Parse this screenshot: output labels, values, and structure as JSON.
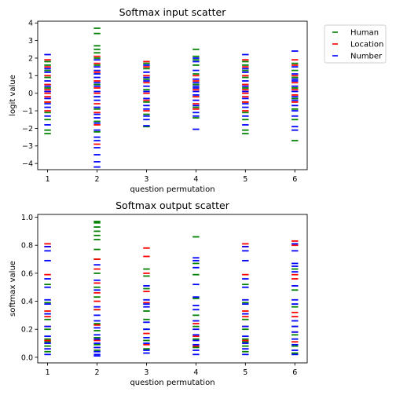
{
  "chart_data": [
    {
      "type": "scatter",
      "title": "Softmax input scatter",
      "xlabel": "question permutation",
      "ylabel": "logit value",
      "xlim": [
        0.8,
        6.25
      ],
      "ylim": [
        -4.35,
        4.1
      ],
      "xticks": [
        1,
        2,
        3,
        4,
        5,
        6
      ],
      "yticks": [
        -4,
        -3,
        -2,
        -1,
        0,
        1,
        2,
        3,
        4
      ],
      "marker": "horizontal-dash",
      "legend": "outside-right",
      "series": [
        {
          "name": "Human",
          "color": "#008000",
          "points": [
            {
              "x": 1,
              "y": [
                -2.3,
                -2.1,
                -1.5,
                -1.1,
                -0.5,
                0.3,
                0.9,
                1.3,
                1.6,
                1.8
              ]
            },
            {
              "x": 2,
              "y": [
                -2.2,
                -1.6,
                -0.9,
                -0.2,
                0.5,
                1.1,
                1.6,
                2.0,
                2.3,
                2.5,
                2.7,
                3.4,
                3.7
              ]
            },
            {
              "x": 3,
              "y": [
                -1.9,
                -1.2,
                -0.5,
                0.2,
                0.8,
                1.4,
                1.7
              ]
            },
            {
              "x": 4,
              "y": [
                -1.4,
                -0.8,
                -0.2,
                0.5,
                1.1,
                1.6,
                1.9,
                2.1,
                2.5
              ]
            },
            {
              "x": 5,
              "y": [
                -2.3,
                -2.1,
                -1.5,
                -1.1,
                -0.5,
                0.3,
                0.9,
                1.3,
                1.6,
                1.8
              ]
            },
            {
              "x": 6,
              "y": [
                -2.7,
                -1.5,
                -0.9,
                -0.3,
                0.3,
                0.9,
                1.3,
                1.7
              ]
            }
          ]
        },
        {
          "name": "Location",
          "color": "#ff0000",
          "points": [
            {
              "x": 1,
              "y": [
                -1.0,
                -0.5,
                -0.2,
                0.0,
                0.2,
                0.5,
                1.0,
                1.5,
                1.9
              ]
            },
            {
              "x": 2,
              "y": [
                -2.9,
                -1.8,
                -1.1,
                -0.6,
                0.0,
                0.3,
                0.7,
                1.2,
                1.7,
                2.1
              ]
            },
            {
              "x": 3,
              "y": [
                -1.0,
                -0.4,
                0.0,
                0.6,
                1.0,
                1.5,
                1.8
              ]
            },
            {
              "x": 4,
              "y": [
                -0.9,
                -0.6,
                -0.2,
                0.2,
                0.7,
                1.0
              ]
            },
            {
              "x": 5,
              "y": [
                -1.0,
                -0.5,
                -0.2,
                0.0,
                0.2,
                0.5,
                1.0,
                1.5,
                1.9
              ]
            },
            {
              "x": 6,
              "y": [
                -0.5,
                -0.1,
                0.2,
                0.6,
                1.0,
                1.6,
                1.9
              ]
            }
          ]
        },
        {
          "name": "Number",
          "color": "#0000ff",
          "points": [
            {
              "x": 1,
              "y": [
                -1.8,
                -1.3,
                -0.8,
                -0.6,
                -0.3,
                0.1,
                0.4,
                0.7,
                1.2,
                1.4,
                2.2
              ]
            },
            {
              "x": 2,
              "y": [
                -4.2,
                -3.9,
                -3.5,
                -3.1,
                -2.7,
                -2.5,
                -2.1,
                -1.7,
                -1.4,
                -1.2,
                -0.8,
                -0.4,
                -0.2,
                0.1,
                0.4,
                0.6,
                0.9,
                1.1,
                1.3,
                1.5,
                1.9
              ]
            },
            {
              "x": 3,
              "y": [
                -1.85,
                -1.5,
                -1.3,
                -0.9,
                -0.7,
                -0.3,
                0.1,
                0.4,
                0.7,
                0.9,
                1.2,
                1.6
              ]
            },
            {
              "x": 4,
              "y": [
                -2.05,
                -1.3,
                -1.1,
                -0.7,
                -0.4,
                -0.1,
                0.1,
                0.3,
                0.4,
                0.6,
                0.8,
                1.3,
                1.8,
                2.0
              ]
            },
            {
              "x": 5,
              "y": [
                -1.8,
                -1.3,
                -0.8,
                -0.6,
                -0.3,
                0.1,
                0.4,
                0.7,
                1.2,
                1.4,
                2.2
              ]
            },
            {
              "x": 6,
              "y": [
                -2.1,
                -1.9,
                -1.3,
                -1.0,
                -0.7,
                -0.4,
                -0.2,
                0.1,
                0.4,
                0.7,
                0.8,
                1.1,
                1.5,
                2.4
              ]
            }
          ]
        }
      ]
    },
    {
      "type": "scatter",
      "title": "Softmax output scatter",
      "xlabel": "question permutation",
      "ylabel": "softmax value",
      "xlim": [
        0.8,
        6.25
      ],
      "ylim": [
        -0.04,
        1.02
      ],
      "xticks": [
        1,
        2,
        3,
        4,
        5,
        6
      ],
      "yticks": [
        0.0,
        0.2,
        0.4,
        0.6,
        0.8,
        1.0
      ],
      "marker": "horizontal-dash",
      "series": [
        {
          "name": "Human",
          "color": "#008000",
          "points": [
            {
              "x": 1,
              "y": [
                0.04,
                0.08,
                0.11,
                0.13,
                0.2,
                0.27,
                0.39,
                0.52
              ]
            },
            {
              "x": 2,
              "y": [
                0.05,
                0.09,
                0.14,
                0.19,
                0.24,
                0.34,
                0.43,
                0.5,
                0.6,
                0.7,
                0.77,
                0.84,
                0.87,
                0.9,
                0.93,
                0.96,
                0.97
              ]
            },
            {
              "x": 3,
              "y": [
                0.06,
                0.12,
                0.2,
                0.27,
                0.33,
                0.49,
                0.58,
                0.63
              ]
            },
            {
              "x": 4,
              "y": [
                0.07,
                0.13,
                0.22,
                0.3,
                0.42,
                0.59,
                0.67,
                0.86
              ]
            },
            {
              "x": 5,
              "y": [
                0.04,
                0.08,
                0.11,
                0.13,
                0.2,
                0.27,
                0.39,
                0.52
              ]
            },
            {
              "x": 6,
              "y": [
                0.03,
                0.08,
                0.16,
                0.22,
                0.36,
                0.48,
                0.63
              ]
            }
          ]
        },
        {
          "name": "Location",
          "color": "#ff0000",
          "points": [
            {
              "x": 1,
              "y": [
                0.12,
                0.22,
                0.29,
                0.33,
                0.59,
                0.79,
                0.81
              ]
            },
            {
              "x": 2,
              "y": [
                0.07,
                0.12,
                0.23,
                0.34,
                0.4,
                0.46,
                0.53,
                0.63,
                0.7
              ]
            },
            {
              "x": 3,
              "y": [
                0.09,
                0.17,
                0.39,
                0.47,
                0.6,
                0.72,
                0.78
              ]
            },
            {
              "x": 4,
              "y": [
                0.08,
                0.15,
                0.24
              ]
            },
            {
              "x": 5,
              "y": [
                0.12,
                0.22,
                0.29,
                0.33,
                0.59,
                0.79,
                0.81
              ]
            },
            {
              "x": 6,
              "y": [
                0.11,
                0.18,
                0.29,
                0.32,
                0.56,
                0.59,
                0.8,
                0.83
              ]
            }
          ]
        },
        {
          "name": "Number",
          "color": "#0000ff",
          "points": [
            {
              "x": 1,
              "y": [
                0.02,
                0.06,
                0.1,
                0.15,
                0.22,
                0.31,
                0.38,
                0.41,
                0.5,
                0.56,
                0.69,
                0.76,
                0.79
              ]
            },
            {
              "x": 2,
              "y": [
                0.01,
                0.02,
                0.04,
                0.07,
                0.1,
                0.13,
                0.16,
                0.21,
                0.26,
                0.3,
                0.36,
                0.48,
                0.55,
                0.66
              ]
            },
            {
              "x": 3,
              "y": [
                0.03,
                0.05,
                0.1,
                0.14,
                0.2,
                0.25,
                0.36,
                0.38,
                0.41,
                0.51
              ]
            },
            {
              "x": 4,
              "y": [
                0.02,
                0.05,
                0.09,
                0.12,
                0.16,
                0.2,
                0.26,
                0.34,
                0.37,
                0.43,
                0.52,
                0.64,
                0.69,
                0.71
              ]
            },
            {
              "x": 5,
              "y": [
                0.02,
                0.06,
                0.1,
                0.15,
                0.22,
                0.31,
                0.38,
                0.41,
                0.5,
                0.56,
                0.69,
                0.76,
                0.79
              ]
            },
            {
              "x": 6,
              "y": [
                0.02,
                0.05,
                0.09,
                0.13,
                0.18,
                0.22,
                0.26,
                0.38,
                0.41,
                0.51,
                0.61,
                0.65,
                0.67,
                0.76,
                0.81
              ]
            }
          ]
        }
      ]
    }
  ]
}
